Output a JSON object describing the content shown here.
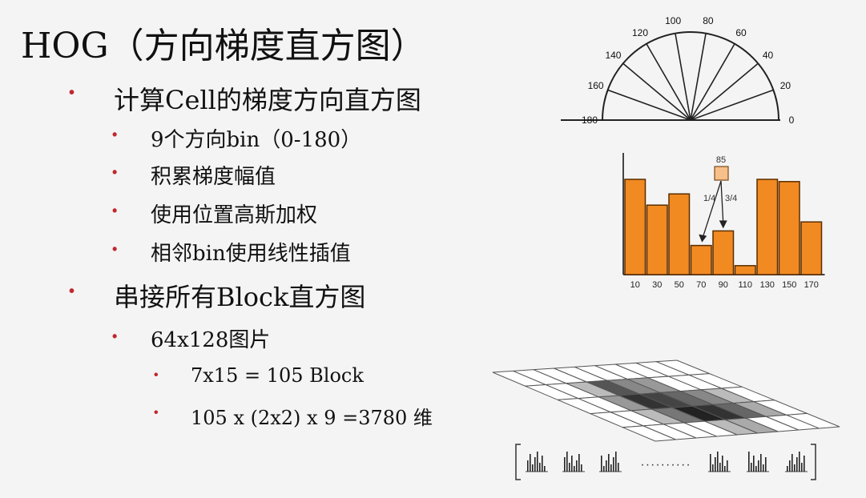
{
  "slide": {
    "title": "HOG（方向梯度直方图）",
    "bullets": [
      {
        "text": "计算Cell的梯度方向直方图"
      },
      {
        "text": "9个方向bin（0-180）"
      },
      {
        "text": "积累梯度幅值"
      },
      {
        "text": "使用位置高斯加权"
      },
      {
        "text": "相邻bin使用线性插值"
      },
      {
        "text": "串接所有Block直方图"
      },
      {
        "text": "64x128图片"
      },
      {
        "text": "7x15 = 105 Block"
      },
      {
        "text": "105 x (2x2) x 9 =3780 维"
      }
    ]
  },
  "semicircle": {
    "angle_labels": [
      "0",
      "20",
      "40",
      "60",
      "80",
      "100",
      "120",
      "140",
      "160",
      "180"
    ]
  },
  "chart_data": {
    "type": "bar",
    "categories": [
      "10",
      "30",
      "50",
      "70",
      "90",
      "110",
      "130",
      "150",
      "170"
    ],
    "values": [
      0.85,
      0.62,
      0.72,
      0.26,
      0.39,
      0.08,
      0.85,
      0.83,
      0.47
    ],
    "ylim": [
      0,
      1
    ],
    "annotations": {
      "value": "85",
      "left_split": "1/4",
      "right_split": "3/4"
    }
  },
  "descriptor": {
    "dots": "··········"
  }
}
